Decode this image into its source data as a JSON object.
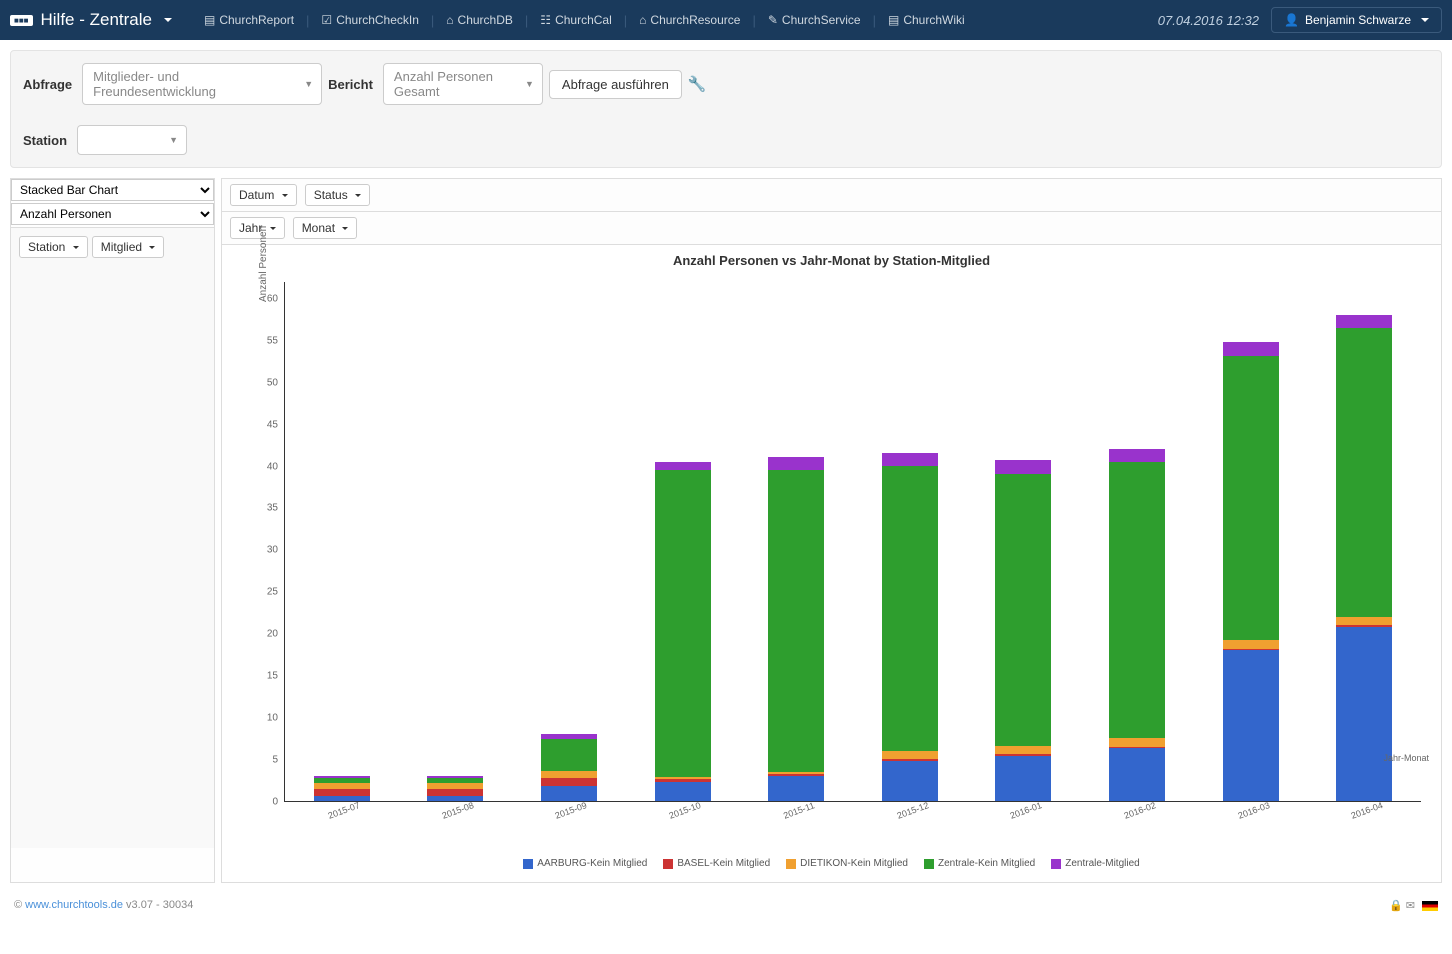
{
  "navbar": {
    "brand": "Hilfe - Zentrale",
    "links": [
      {
        "icon": "▤",
        "label": "ChurchReport"
      },
      {
        "icon": "☑",
        "label": "ChurchCheckIn"
      },
      {
        "icon": "⌂",
        "label": "ChurchDB"
      },
      {
        "icon": "☷",
        "label": "ChurchCal"
      },
      {
        "icon": "⌂",
        "label": "ChurchResource"
      },
      {
        "icon": "✎",
        "label": "ChurchService"
      },
      {
        "icon": "▤",
        "label": "ChurchWiki"
      }
    ],
    "datetime": "07.04.2016 12:32",
    "user": "Benjamin Schwarze"
  },
  "filters": {
    "abfrage_label": "Abfrage",
    "abfrage_value": "Mitglieder- und Freundesentwicklung",
    "bericht_label": "Bericht",
    "bericht_value": "Anzahl Personen Gesamt",
    "station_label": "Station",
    "station_value": "",
    "run_button": "Abfrage ausführen"
  },
  "left_panel": {
    "chart_type": "Stacked Bar Chart",
    "measure": "Anzahl Personen",
    "pills": [
      "Station",
      "Mitglied"
    ]
  },
  "top_pills_row1": [
    "Datum",
    "Status"
  ],
  "top_pills_row2": [
    "Jahr",
    "Monat"
  ],
  "chart": {
    "title": "Anzahl Personen vs Jahr-Monat by Station-Mitglied",
    "type": "stacked-bar",
    "y_axis_label": "Anzahl Personen",
    "x_axis_label": "Jahr-Monat",
    "y_max": 62,
    "y_ticks": [
      0,
      5,
      10,
      15,
      20,
      25,
      30,
      35,
      40,
      45,
      50,
      55,
      60
    ],
    "categories": [
      "2015-07",
      "2015-08",
      "2015-09",
      "2015-10",
      "2015-11",
      "2015-12",
      "2016-01",
      "2016-02",
      "2016-03",
      "2016-04"
    ],
    "series": [
      {
        "name": "AARBURG-Kein Mitglied",
        "color": "#3366cc"
      },
      {
        "name": "BASEL-Kein Mitglied",
        "color": "#cc3333"
      },
      {
        "name": "DIETIKON-Kein Mitglied",
        "color": "#f0a030"
      },
      {
        "name": "Zentrale-Kein Mitglied",
        "color": "#2e9e2e"
      },
      {
        "name": "Zentrale-Mitglied",
        "color": "#9933cc"
      }
    ],
    "stacks": [
      [
        0.6,
        0.8,
        0.8,
        0.5,
        0.3
      ],
      [
        0.6,
        0.8,
        0.8,
        0.5,
        0.3
      ],
      [
        1.8,
        1.0,
        0.8,
        3.8,
        0.6
      ],
      [
        2.3,
        0.3,
        0.3,
        36.6,
        1.0
      ],
      [
        3.0,
        0.2,
        0.3,
        36.0,
        1.6
      ],
      [
        4.8,
        0.2,
        1.0,
        34.0,
        1.6
      ],
      [
        5.4,
        0.2,
        1.0,
        32.5,
        1.6
      ],
      [
        6.3,
        0.2,
        1.0,
        33.0,
        1.6
      ],
      [
        18.0,
        0.2,
        1.0,
        34.0,
        1.6
      ],
      [
        20.8,
        0.2,
        1.0,
        34.5,
        1.6
      ]
    ],
    "background_color": "#ffffff",
    "axis_color": "#333333",
    "tick_fontsize": 10,
    "title_fontsize": 13
  },
  "footer": {
    "copy": "© ",
    "link": "www.churchtools.de",
    "version": " v3.07 - 30034"
  }
}
